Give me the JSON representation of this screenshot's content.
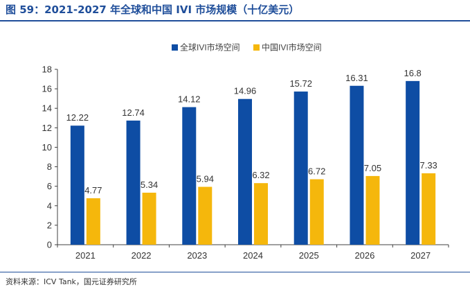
{
  "figure": {
    "title": "图 59：2021-2027 年全球和中国 IVI 市场规模（十亿美元）",
    "source": "资料来源：ICV Tank，国元证券研究所"
  },
  "colors": {
    "title": "#1F4E9A",
    "global": "#0E4DA4",
    "china": "#F5B70C",
    "axis": "#404040"
  },
  "chart_data": {
    "type": "bar",
    "categories": [
      "2021",
      "2022",
      "2023",
      "2024",
      "2025",
      "2026",
      "2027"
    ],
    "series": [
      {
        "name": "全球IVI市场空间",
        "values": [
          12.22,
          12.74,
          14.12,
          14.96,
          15.72,
          16.31,
          16.8
        ]
      },
      {
        "name": "中国IVI市场空间",
        "values": [
          4.77,
          5.34,
          5.94,
          6.32,
          6.72,
          7.05,
          7.33
        ]
      }
    ],
    "yticks": [
      0,
      2,
      4,
      6,
      8,
      10,
      12,
      14,
      16,
      18
    ],
    "ylim": [
      0,
      18
    ],
    "legend": "top-center",
    "grid": false,
    "data_labels": true,
    "xlabel": "",
    "ylabel": ""
  }
}
